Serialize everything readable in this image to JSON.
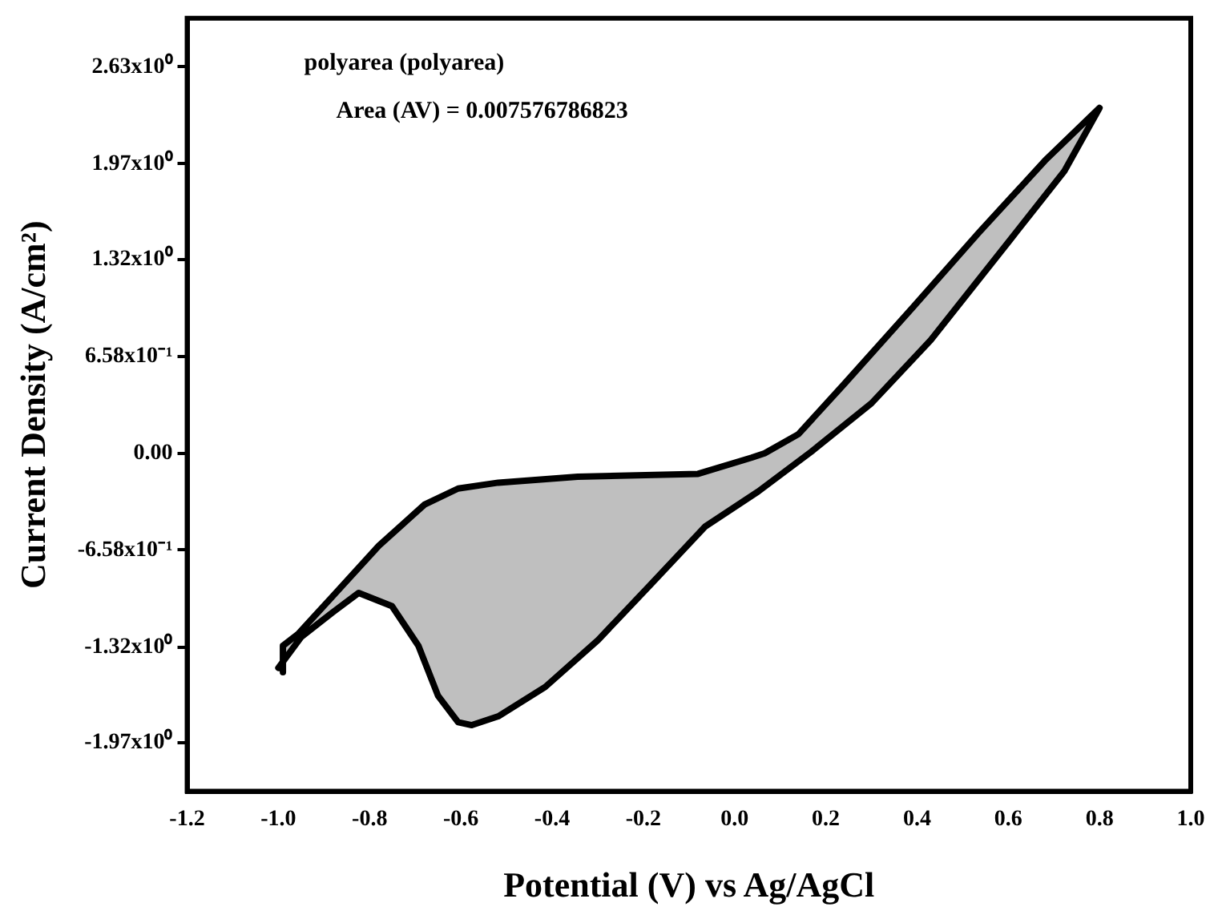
{
  "chart_data": {
    "type": "area",
    "xlabel": "Potential (V) vs Ag/AgCl",
    "ylabel": "Current Density (A/cm²)",
    "annotations": [
      "polyarea (polyarea)",
      "Area (AV) = 0.007576786823"
    ],
    "xlim": [
      -1.2,
      1.0
    ],
    "xticks": [
      -1.2,
      {
        "value": -1.0,
        "label": "-1.0"
      },
      -0.8,
      -0.6,
      -0.4,
      -0.2,
      {
        "value": 0,
        "label": "0.0"
      },
      0.2,
      0.4,
      0.6,
      0.8,
      {
        "value": 1.0,
        "label": "1.0"
      }
    ],
    "ylim": [
      -2.3,
      2.96
    ],
    "yticks": [
      {
        "value": -1.97,
        "label": "-1.97x10⁰"
      },
      {
        "value": -1.32,
        "label": "-1.32x10⁰"
      },
      {
        "value": -0.658,
        "label": "-6.58x10⁻¹"
      },
      {
        "value": 0,
        "label": "0.00"
      },
      {
        "value": 0.658,
        "label": "6.58x10⁻¹"
      },
      {
        "value": 1.32,
        "label": "1.32x10⁰"
      },
      {
        "value": 1.97,
        "label": "1.97x10⁰"
      },
      {
        "value": 2.63,
        "label": "2.63x10⁰"
      }
    ],
    "grid": false,
    "legend": false,
    "marker": "none",
    "line_style": "solid",
    "series": [
      {
        "color": "#000000",
        "x": [
          -1.0,
          -0.95,
          -0.88,
          -0.824,
          -0.751,
          -0.693,
          -0.65,
          -0.606,
          -0.576,
          -0.518,
          -0.415,
          -0.299,
          -0.183,
          -0.065,
          0.052,
          0.168,
          0.3,
          0.43,
          0.606,
          0.723,
          0.8,
          0.68,
          0.535,
          0.39,
          0.24,
          0.14,
          0.066,
          0.037,
          -0.08,
          -0.344,
          -0.518,
          -0.606,
          -0.68,
          -0.78,
          -0.88,
          -0.957,
          -0.99,
          -0.99
        ],
        "values": [
          -1.46,
          -1.25,
          -1.08,
          -0.95,
          -1.04,
          -1.31,
          -1.65,
          -1.83,
          -1.85,
          -1.79,
          -1.59,
          -1.27,
          -0.89,
          -0.5,
          -0.26,
          0.01,
          0.34,
          0.77,
          1.46,
          1.92,
          2.35,
          1.99,
          1.5,
          0.99,
          0.47,
          0.13,
          0.0,
          -0.03,
          -0.14,
          -0.16,
          -0.2,
          -0.24,
          -0.35,
          -0.63,
          -0.97,
          -1.23,
          -1.31,
          -1.49
        ]
      }
    ]
  }
}
